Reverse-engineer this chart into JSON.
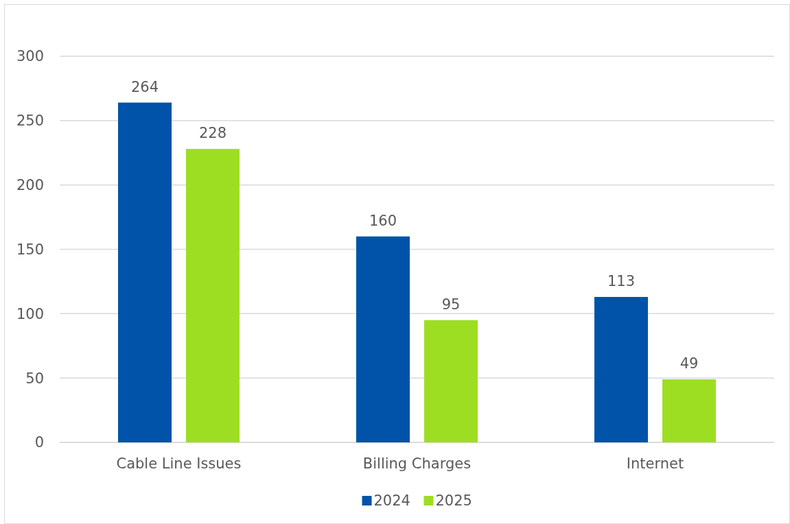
{
  "chart_data": {
    "type": "bar",
    "categories": [
      "Cable Line Issues",
      "Billing Charges",
      "Internet"
    ],
    "series": [
      {
        "name": "2024",
        "color": "#0053a8",
        "values": [
          264,
          160,
          113
        ]
      },
      {
        "name": "2025",
        "color": "#9ede22",
        "values": [
          228,
          95,
          49
        ]
      }
    ],
    "ylim": [
      0,
      300
    ],
    "yticks": [
      0,
      50,
      100,
      150,
      200,
      250,
      300
    ],
    "grid": "y",
    "legend": "bottom",
    "data_labels": true
  }
}
